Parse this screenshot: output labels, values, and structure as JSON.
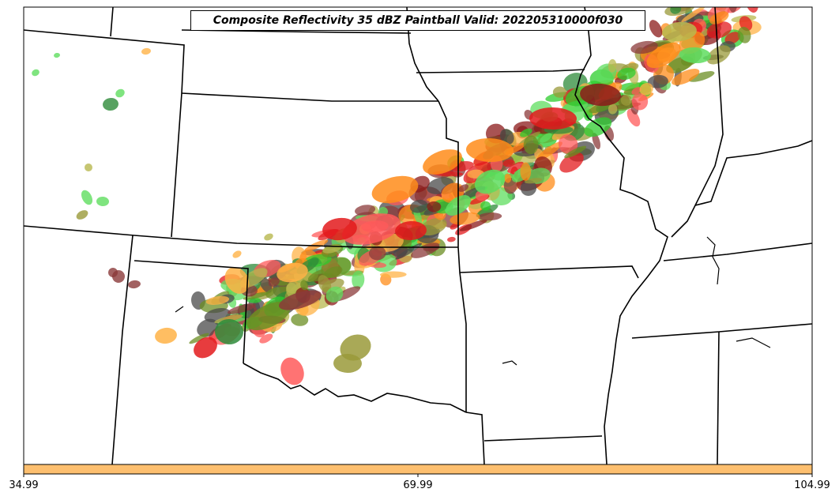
{
  "title": "Composite Reflectivity 35 dBZ Paintball Valid: 202205310000f030",
  "colorbar": {
    "ticks": [
      "34.99",
      "69.99",
      "104.99"
    ],
    "color": "#fdbf6f"
  },
  "palette": [
    "#33a02c",
    "#e31a1c",
    "#ff7f00",
    "#6a3d9a",
    "#b2df8a",
    "#fb9a99",
    "#fdbf6f",
    "#cab2d6",
    "#1f78b4",
    "#b15928"
  ],
  "member_colors": {
    "green": "#2ecc2e",
    "light_green": "#5fdd5f",
    "dark_green": "#2e8b3a",
    "olive": "#9a9a3a",
    "khaki": "#b8b84f",
    "red": "#e31a1c",
    "pink_red": "#ff5a5a",
    "orange": "#ff8c1a",
    "light_orange": "#ffb347",
    "dark_red": "#8b1a1a",
    "brown": "#8b3a3a",
    "dark_gray": "#4a4a4a",
    "olive_green": "#6b8e23"
  },
  "map": {
    "basemap": "state boundaries",
    "field": "Composite Reflectivity 35 dBZ Paintball"
  }
}
